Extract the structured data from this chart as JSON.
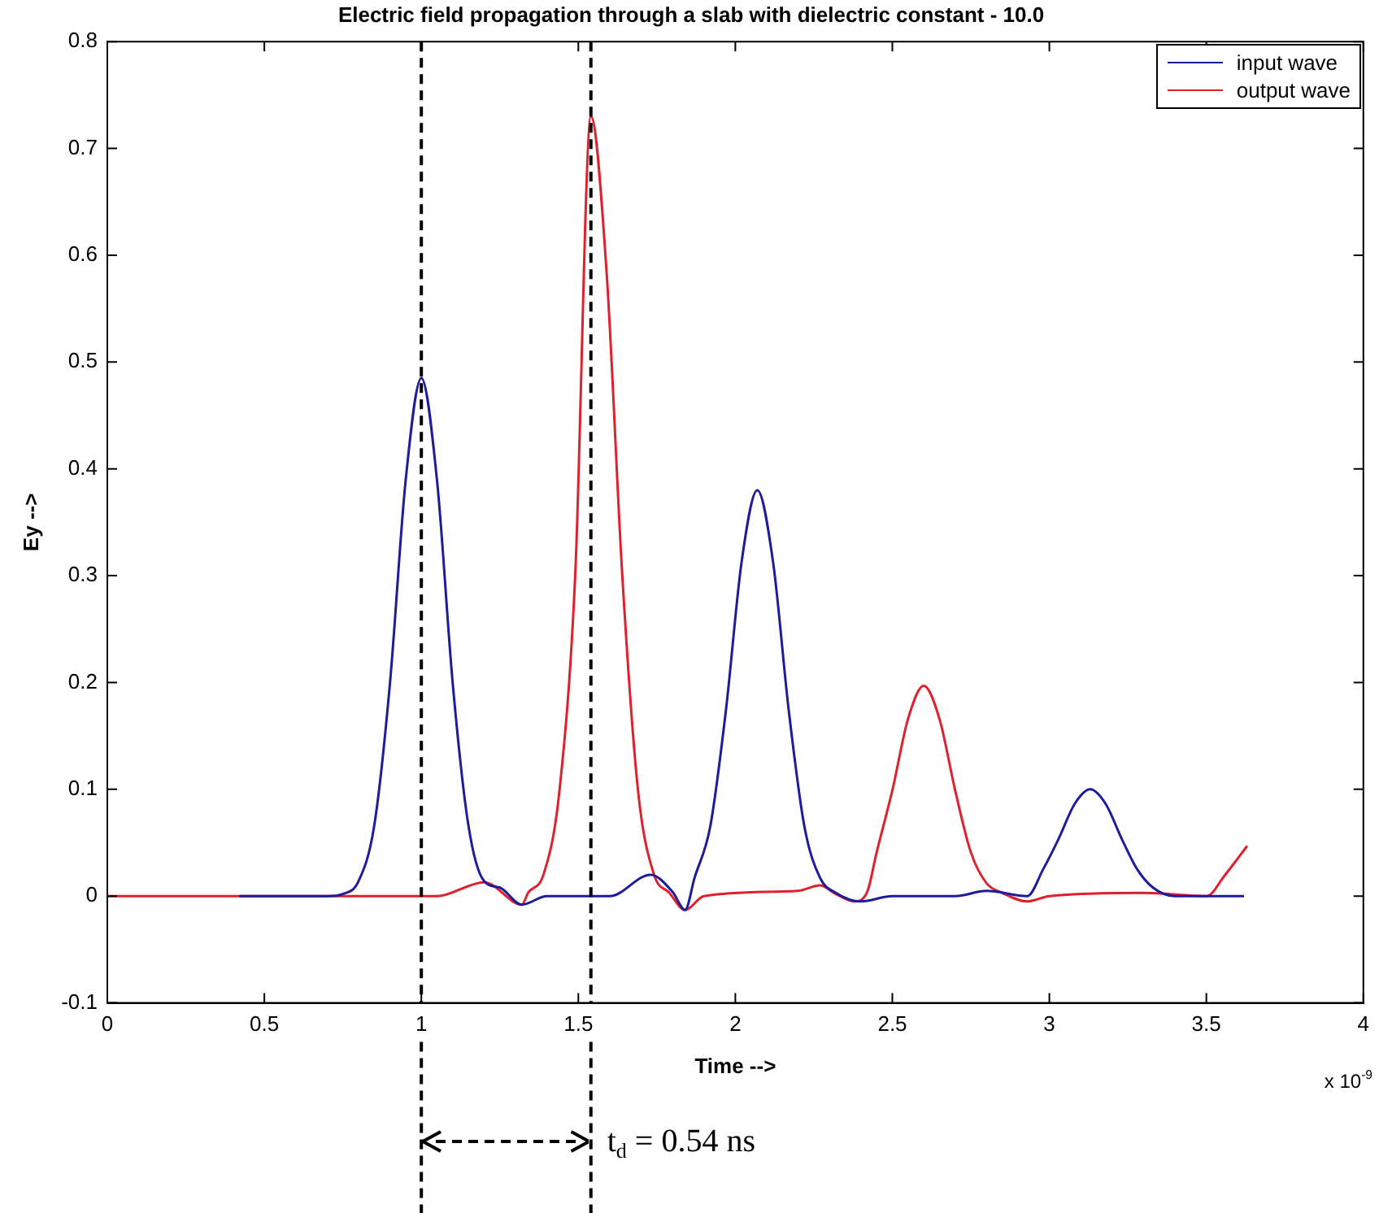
{
  "chart_data": {
    "type": "line",
    "title": "Electric field propagation through a slab with dielectric constant - 10.0",
    "xlabel": "Time -->",
    "ylabel": "Ey -->",
    "xlim": [
      0,
      4
    ],
    "xticks": [
      0,
      0.5,
      1,
      1.5,
      2,
      2.5,
      3,
      3.5,
      4
    ],
    "ylim": [
      -0.1,
      0.8
    ],
    "yticks": [
      -0.1,
      0,
      0.1,
      0.2,
      0.3,
      0.4,
      0.5,
      0.6,
      0.7,
      0.8
    ],
    "legend": "top right",
    "line_style": "solid",
    "series": [
      {
        "name": "input wave",
        "color": "#1c1c9c",
        "x": [
          0.42,
          0.7,
          0.75,
          0.8,
          0.85,
          0.9,
          0.95,
          1.0,
          1.05,
          1.1,
          1.15,
          1.2,
          1.25,
          1.32,
          1.4,
          1.6,
          1.73,
          1.8,
          1.84,
          1.87,
          1.92,
          1.97,
          2.02,
          2.07,
          2.12,
          2.17,
          2.22,
          2.27,
          2.32,
          2.4,
          2.5,
          2.7,
          2.8,
          2.93,
          2.98,
          3.03,
          3.08,
          3.13,
          3.18,
          3.23,
          3.28,
          3.33,
          3.4,
          3.62
        ],
        "values": [
          0,
          0,
          0.002,
          0.014,
          0.066,
          0.199,
          0.389,
          0.485,
          0.389,
          0.199,
          0.066,
          0.014,
          0.008,
          -0.008,
          0,
          0,
          0.02,
          0.004,
          -0.013,
          0.017,
          0.065,
          0.174,
          0.313,
          0.38,
          0.313,
          0.174,
          0.065,
          0.017,
          0.003,
          -0.005,
          0,
          0,
          0.005,
          0,
          0.025,
          0.054,
          0.086,
          0.1,
          0.086,
          0.054,
          0.025,
          0.008,
          0,
          0
        ]
      },
      {
        "name": "output wave",
        "color": "#e0202c",
        "x": [
          0,
          1.05,
          1.2,
          1.32,
          1.34,
          1.39,
          1.44,
          1.49,
          1.54,
          1.59,
          1.64,
          1.69,
          1.74,
          1.79,
          1.84,
          1.9,
          2.2,
          2.27,
          2.32,
          2.38,
          2.42,
          2.45,
          2.5,
          2.55,
          2.6,
          2.65,
          2.7,
          2.75,
          2.8,
          2.85,
          2.93,
          3.0,
          3.3,
          3.5,
          3.56,
          3.63
        ],
        "values": [
          0,
          0,
          0.013,
          -0.008,
          0.003,
          0.021,
          0.099,
          0.3,
          0.73,
          0.584,
          0.3,
          0.099,
          0.021,
          0.003,
          -0.013,
          0,
          0.005,
          0.01,
          0.002,
          -0.005,
          0.004,
          0.041,
          0.099,
          0.166,
          0.197,
          0.166,
          0.099,
          0.041,
          0.012,
          0.003,
          -0.005,
          0,
          0.003,
          0,
          0.02,
          0.047
        ]
      }
    ],
    "ref_lines": [
      {
        "axis": "x",
        "value": 1,
        "color": "#000000",
        "line_style": "dashed"
      },
      {
        "axis": "x",
        "value": 1.54,
        "color": "#000000",
        "line_style": "dashed"
      }
    ],
    "annotations": [
      "t$_{d}$ = 0.54 ns",
      "x 10$^{-9}$"
    ]
  }
}
